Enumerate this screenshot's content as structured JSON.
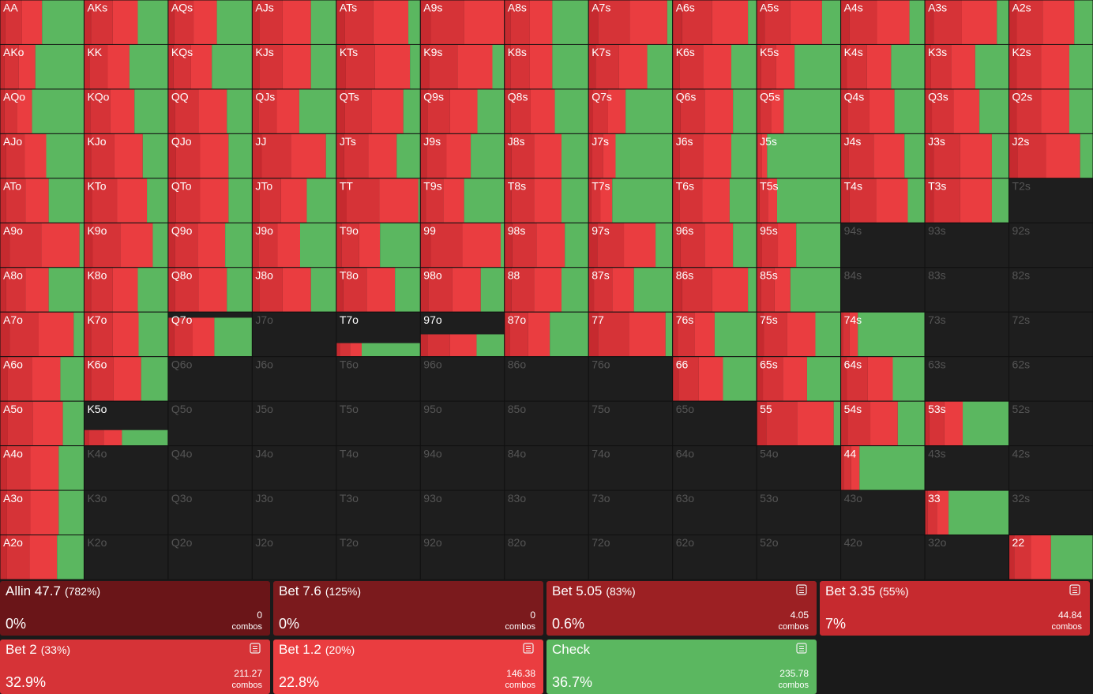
{
  "grid": {
    "segment_colors": [
      "#c62a2f",
      "#d63337",
      "#ea3d40",
      "#5bb760"
    ],
    "rows": [
      [
        {
          "hand": "AA",
          "freq": [
            6,
            20,
            24,
            50
          ]
        },
        {
          "hand": "AKs",
          "freq": [
            8,
            26,
            30,
            36
          ]
        },
        {
          "hand": "AQs",
          "freq": [
            7,
            23,
            28,
            42
          ]
        },
        {
          "hand": "AJs",
          "freq": [
            8,
            28,
            34,
            30
          ]
        },
        {
          "hand": "ATs",
          "freq": [
            10,
            34,
            42,
            14
          ]
        },
        {
          "hand": "A9s",
          "freq": [
            12,
            40,
            48,
            0
          ]
        },
        {
          "hand": "A8s",
          "freq": [
            7,
            23,
            27,
            43
          ]
        },
        {
          "hand": "A7s",
          "freq": [
            11,
            38,
            45,
            6
          ]
        },
        {
          "hand": "A6s",
          "freq": [
            11,
            36,
            43,
            10
          ]
        },
        {
          "hand": "A5s",
          "freq": [
            9,
            31,
            38,
            22
          ]
        },
        {
          "hand": "A4s",
          "freq": [
            10,
            33,
            39,
            18
          ]
        },
        {
          "hand": "A3s",
          "freq": [
            10,
            34,
            42,
            14
          ]
        },
        {
          "hand": "A2s",
          "freq": [
            9,
            31,
            38,
            22
          ]
        }
      ],
      [
        {
          "hand": "AKo",
          "freq": [
            5,
            17,
            20,
            58
          ]
        },
        {
          "hand": "KK",
          "freq": [
            6,
            22,
            26,
            46
          ]
        },
        {
          "hand": "KQs",
          "freq": [
            6,
            21,
            25,
            48
          ]
        },
        {
          "hand": "KJs",
          "freq": [
            8,
            28,
            34,
            30
          ]
        },
        {
          "hand": "KTs",
          "freq": [
            11,
            35,
            42,
            12
          ]
        },
        {
          "hand": "K9s",
          "freq": [
            10,
            34,
            42,
            14
          ]
        },
        {
          "hand": "K8s",
          "freq": [
            7,
            23,
            27,
            43
          ]
        },
        {
          "hand": "K7s",
          "freq": [
            8,
            28,
            34,
            30
          ]
        },
        {
          "hand": "K6s",
          "freq": [
            8,
            28,
            34,
            30
          ]
        },
        {
          "hand": "K5s",
          "freq": [
            5,
            18,
            22,
            55
          ]
        },
        {
          "hand": "K4s",
          "freq": [
            7,
            24,
            29,
            40
          ]
        },
        {
          "hand": "K3s",
          "freq": [
            7,
            24,
            29,
            40
          ]
        },
        {
          "hand": "K2s",
          "freq": [
            9,
            29,
            34,
            28
          ]
        }
      ],
      [
        {
          "hand": "AQo",
          "freq": [
            5,
            15,
            18,
            62
          ]
        },
        {
          "hand": "KQo",
          "freq": [
            7,
            24,
            29,
            40
          ]
        },
        {
          "hand": "QQ",
          "freq": [
            8,
            28,
            34,
            30
          ]
        },
        {
          "hand": "QJs",
          "freq": [
            7,
            22,
            27,
            44
          ]
        },
        {
          "hand": "QTs",
          "freq": [
            10,
            32,
            38,
            20
          ]
        },
        {
          "hand": "Q9s",
          "freq": [
            8,
            27,
            33,
            32
          ]
        },
        {
          "hand": "Q8s",
          "freq": [
            7,
            24,
            29,
            40
          ]
        },
        {
          "hand": "Q7s",
          "freq": [
            5,
            18,
            21,
            56
          ]
        },
        {
          "hand": "Q6s",
          "freq": [
            9,
            29,
            34,
            28
          ]
        },
        {
          "hand": "Q5s",
          "freq": [
            4,
            13,
            15,
            68
          ]
        },
        {
          "hand": "Q4s",
          "freq": [
            8,
            26,
            30,
            36
          ]
        },
        {
          "hand": "Q3s",
          "freq": [
            8,
            26,
            31,
            35
          ]
        },
        {
          "hand": "Q2s",
          "freq": [
            9,
            29,
            34,
            28
          ]
        }
      ],
      [
        {
          "hand": "AJo",
          "freq": [
            7,
            22,
            26,
            45
          ]
        },
        {
          "hand": "KJo",
          "freq": [
            8,
            28,
            34,
            30
          ]
        },
        {
          "hand": "QJo",
          "freq": [
            9,
            29,
            34,
            28
          ]
        },
        {
          "hand": "JJ",
          "freq": [
            11,
            35,
            42,
            12
          ]
        },
        {
          "hand": "JTs",
          "freq": [
            9,
            29,
            34,
            28
          ]
        },
        {
          "hand": "J9s",
          "freq": [
            7,
            24,
            29,
            40
          ]
        },
        {
          "hand": "J8s",
          "freq": [
            8,
            27,
            33,
            32
          ]
        },
        {
          "hand": "J7s",
          "freq": [
            4,
            13,
            15,
            68
          ]
        },
        {
          "hand": "J6s",
          "freq": [
            8,
            28,
            34,
            30
          ]
        },
        {
          "hand": "J5s",
          "freq": [
            1,
            5,
            6,
            88
          ]
        },
        {
          "hand": "J4s",
          "freq": [
            9,
            30,
            37,
            24
          ]
        },
        {
          "hand": "J3s",
          "freq": [
            10,
            32,
            38,
            20
          ]
        },
        {
          "hand": "J2s",
          "freq": [
            10,
            34,
            41,
            15
          ]
        }
      ],
      [
        {
          "hand": "ATo",
          "freq": [
            7,
            23,
            28,
            42
          ]
        },
        {
          "hand": "KTo",
          "freq": [
            9,
            30,
            36,
            25
          ]
        },
        {
          "hand": "QTo",
          "freq": [
            9,
            29,
            34,
            28
          ]
        },
        {
          "hand": "JTo",
          "freq": [
            8,
            26,
            31,
            35
          ]
        },
        {
          "hand": "TT",
          "freq": [
            12,
            39,
            47,
            2
          ]
        },
        {
          "hand": "T9s",
          "freq": [
            6,
            21,
            25,
            48
          ]
        },
        {
          "hand": "T8s",
          "freq": [
            8,
            27,
            33,
            32
          ]
        },
        {
          "hand": "T7s",
          "freq": [
            3,
            11,
            14,
            72
          ]
        },
        {
          "hand": "T6s",
          "freq": [
            8,
            27,
            33,
            32
          ]
        },
        {
          "hand": "T5s",
          "freq": [
            3,
            10,
            11,
            76
          ]
        },
        {
          "hand": "T4s",
          "freq": [
            10,
            32,
            38,
            20
          ]
        },
        {
          "hand": "T3s",
          "freq": [
            10,
            32,
            38,
            20
          ]
        },
        {
          "hand": "T2s"
        }
      ],
      [
        {
          "hand": "A9o",
          "freq": [
            11,
            38,
            46,
            5
          ]
        },
        {
          "hand": "K9o",
          "freq": [
            10,
            33,
            39,
            18
          ]
        },
        {
          "hand": "Q9o",
          "freq": [
            8,
            27,
            33,
            32
          ]
        },
        {
          "hand": "J9o",
          "freq": [
            7,
            23,
            27,
            43
          ]
        },
        {
          "hand": "T9o",
          "freq": [
            6,
            21,
            25,
            48
          ]
        },
        {
          "hand": "99",
          "freq": [
            12,
            38,
            46,
            4
          ]
        },
        {
          "hand": "98s",
          "freq": [
            9,
            29,
            34,
            28
          ]
        },
        {
          "hand": "97s",
          "freq": [
            10,
            32,
            38,
            20
          ]
        },
        {
          "hand": "96s",
          "freq": [
            9,
            29,
            34,
            28
          ]
        },
        {
          "hand": "95s",
          "freq": [
            6,
            19,
            22,
            53
          ]
        },
        {
          "hand": "94s"
        },
        {
          "hand": "93s"
        },
        {
          "hand": "92s"
        }
      ],
      [
        {
          "hand": "A8o",
          "freq": [
            7,
            23,
            28,
            42
          ]
        },
        {
          "hand": "K8o",
          "freq": [
            8,
            26,
            30,
            36
          ]
        },
        {
          "hand": "Q8o",
          "freq": [
            8,
            28,
            34,
            30
          ]
        },
        {
          "hand": "J8o",
          "freq": [
            8,
            28,
            34,
            30
          ]
        },
        {
          "hand": "T8o",
          "freq": [
            8,
            28,
            34,
            30
          ]
        },
        {
          "hand": "98o",
          "freq": [
            9,
            29,
            34,
            28
          ]
        },
        {
          "hand": "88",
          "freq": [
            8,
            27,
            33,
            32
          ]
        },
        {
          "hand": "87s",
          "freq": [
            6,
            22,
            26,
            46
          ]
        },
        {
          "hand": "86s",
          "freq": [
            11,
            36,
            43,
            10
          ]
        },
        {
          "hand": "85s",
          "freq": [
            5,
            16,
            19,
            60
          ]
        },
        {
          "hand": "84s"
        },
        {
          "hand": "83s"
        },
        {
          "hand": "82s"
        }
      ],
      [
        {
          "hand": "A7o",
          "freq": [
            11,
            35,
            42,
            12
          ]
        },
        {
          "hand": "K7o",
          "freq": [
            8,
            26,
            31,
            35
          ]
        },
        {
          "hand": "Q7o",
          "weight": 88,
          "freq": [
            7,
            22,
            26,
            45
          ]
        },
        {
          "hand": "J7o"
        },
        {
          "hand": "T7o",
          "weight": 30,
          "freq": [
            4,
            12,
            14,
            70
          ]
        },
        {
          "hand": "97o",
          "weight": 50,
          "freq": [
            8,
            27,
            32,
            33
          ]
        },
        {
          "hand": "87o",
          "freq": [
            6,
            22,
            26,
            46
          ]
        },
        {
          "hand": "77",
          "freq": [
            11,
            37,
            44,
            8
          ]
        },
        {
          "hand": "76s",
          "freq": [
            6,
            20,
            24,
            50
          ]
        },
        {
          "hand": "75s",
          "freq": [
            8,
            28,
            34,
            30
          ]
        },
        {
          "hand": "74s",
          "freq": [
            2,
            8,
            10,
            80
          ]
        },
        {
          "hand": "73s"
        },
        {
          "hand": "72s"
        }
      ],
      [
        {
          "hand": "A6o",
          "freq": [
            9,
            29,
            34,
            28
          ]
        },
        {
          "hand": "K6o",
          "freq": [
            8,
            27,
            33,
            32
          ]
        },
        {
          "hand": "Q6o"
        },
        {
          "hand": "J6o"
        },
        {
          "hand": "T6o"
        },
        {
          "hand": "96o"
        },
        {
          "hand": "86o"
        },
        {
          "hand": "76o"
        },
        {
          "hand": "66",
          "freq": [
            7,
            24,
            29,
            40
          ]
        },
        {
          "hand": "65s",
          "freq": [
            7,
            24,
            29,
            40
          ]
        },
        {
          "hand": "64s",
          "freq": [
            7,
            25,
            30,
            38
          ]
        },
        {
          "hand": "63s"
        },
        {
          "hand": "62s"
        }
      ],
      [
        {
          "hand": "A5o",
          "freq": [
            9,
            30,
            36,
            25
          ]
        },
        {
          "hand": "K5o",
          "weight": 35,
          "freq": [
            5,
            18,
            22,
            55
          ]
        },
        {
          "hand": "Q5o"
        },
        {
          "hand": "J5o"
        },
        {
          "hand": "T5o"
        },
        {
          "hand": "95o"
        },
        {
          "hand": "85o"
        },
        {
          "hand": "75o"
        },
        {
          "hand": "65o"
        },
        {
          "hand": "55",
          "freq": [
            11,
            37,
            44,
            8
          ]
        },
        {
          "hand": "54s",
          "freq": [
            8,
            27,
            33,
            32
          ]
        },
        {
          "hand": "53s",
          "freq": [
            5,
            18,
            22,
            55
          ]
        },
        {
          "hand": "52s"
        }
      ],
      [
        {
          "hand": "A4o",
          "freq": [
            8,
            28,
            34,
            30
          ]
        },
        {
          "hand": "K4o"
        },
        {
          "hand": "Q4o"
        },
        {
          "hand": "J4o"
        },
        {
          "hand": "T4o"
        },
        {
          "hand": "94o"
        },
        {
          "hand": "84o"
        },
        {
          "hand": "74o"
        },
        {
          "hand": "64o"
        },
        {
          "hand": "54o"
        },
        {
          "hand": "44",
          "freq": [
            3,
            9,
            10,
            78
          ]
        },
        {
          "hand": "43s"
        },
        {
          "hand": "42s"
        }
      ],
      [
        {
          "hand": "A3o",
          "freq": [
            8,
            28,
            34,
            30
          ]
        },
        {
          "hand": "K3o"
        },
        {
          "hand": "Q3o"
        },
        {
          "hand": "J3o"
        },
        {
          "hand": "T3o"
        },
        {
          "hand": "93o"
        },
        {
          "hand": "83o"
        },
        {
          "hand": "73o"
        },
        {
          "hand": "63o"
        },
        {
          "hand": "53o"
        },
        {
          "hand": "43o"
        },
        {
          "hand": "33",
          "freq": [
            3,
            11,
            14,
            72
          ]
        },
        {
          "hand": "32s"
        }
      ],
      [
        {
          "hand": "A2o",
          "freq": [
            8,
            27,
            33,
            32
          ]
        },
        {
          "hand": "K2o"
        },
        {
          "hand": "Q2o"
        },
        {
          "hand": "J2o"
        },
        {
          "hand": "T2o"
        },
        {
          "hand": "92o"
        },
        {
          "hand": "82o"
        },
        {
          "hand": "72o"
        },
        {
          "hand": "62o"
        },
        {
          "hand": "52o"
        },
        {
          "hand": "42o"
        },
        {
          "hand": "32o"
        },
        {
          "hand": "22",
          "freq": [
            6,
            20,
            24,
            50
          ]
        }
      ]
    ]
  },
  "actions": [
    {
      "name": "Allin 47.7",
      "size": "(782%)",
      "freq": "0%",
      "combos": "0",
      "unit": "combos",
      "color": "#6a1518",
      "icon": false
    },
    {
      "name": "Bet 7.6",
      "size": "(125%)",
      "freq": "0%",
      "combos": "0",
      "unit": "combos",
      "color": "#7b1a1d",
      "icon": false
    },
    {
      "name": "Bet 5.05",
      "size": "(83%)",
      "freq": "0.6%",
      "combos": "4.05",
      "unit": "combos",
      "color": "#9c2023",
      "icon": true
    },
    {
      "name": "Bet 3.35",
      "size": "(55%)",
      "freq": "7%",
      "combos": "44.84",
      "unit": "combos",
      "color": "#c62a2f",
      "icon": true
    },
    {
      "name": "Bet 2",
      "size": "(33%)",
      "freq": "32.9%",
      "combos": "211.27",
      "unit": "combos",
      "color": "#d63337",
      "icon": true
    },
    {
      "name": "Bet 1.2",
      "size": "(20%)",
      "freq": "22.8%",
      "combos": "146.38",
      "unit": "combos",
      "color": "#ea3d40",
      "icon": true
    },
    {
      "name": "Check",
      "size": "",
      "freq": "36.7%",
      "combos": "235.78",
      "unit": "combos",
      "color": "#5bb760",
      "icon": true
    }
  ]
}
